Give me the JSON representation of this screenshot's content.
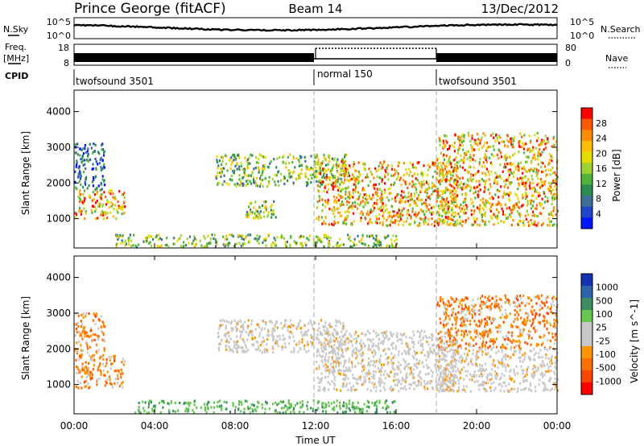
{
  "header": {
    "station": "Prince George (fitACF)",
    "beam": "Beam 14",
    "date": "13/Dec/2012"
  },
  "noise_panel": {
    "left_label": "N.Sky",
    "right_label": "N.Search",
    "left_ticks": [
      "10^5",
      "10^0"
    ],
    "right_ticks": [
      "10^5",
      "10^0"
    ]
  },
  "freq_panel": {
    "left_label_1": "Freq.",
    "left_label_2": "[MHz]",
    "left_ticks": [
      "18",
      "8"
    ],
    "right_label": "Nave",
    "right_ticks": [
      "80",
      "0"
    ]
  },
  "cpid_panel": {
    "label": "CPID",
    "segments": [
      {
        "name": "twofsound 3501",
        "start_h": 0,
        "end_h": 12
      },
      {
        "name": "normal 150",
        "start_h": 12,
        "end_h": 18
      },
      {
        "name": "twofsound 3501",
        "start_h": 18,
        "end_h": 24
      }
    ]
  },
  "time_axis": {
    "label": "Time UT",
    "ticks": [
      "00:00",
      "04:00",
      "08:00",
      "12:00",
      "16:00",
      "20:00",
      "00:00"
    ]
  },
  "chart_data": [
    {
      "type": "heatmap",
      "title": "",
      "ylabel": "Slant Range [km]",
      "xlabel": "",
      "x_range_hours": [
        0,
        24
      ],
      "ylim": [
        180,
        4600
      ],
      "y_ticks": [
        "4000",
        "3000",
        "2000",
        "1000"
      ],
      "colorbar": {
        "label": "Power [dB]",
        "ticks": [
          "28",
          "24",
          "20",
          "16",
          "12",
          "8",
          "4"
        ],
        "colors": [
          "#ff0000",
          "#ff5a00",
          "#ff8c00",
          "#ffbe00",
          "#e6dc00",
          "#a0d232",
          "#50b43c",
          "#2d8c50",
          "#3c6e96",
          "#1e46c8",
          "#0014ff"
        ]
      },
      "regions": [
        {
          "name": "dawn-near",
          "t": [
            0.0,
            2.5
          ],
          "r": [
            1000,
            1800
          ],
          "level": "high"
        },
        {
          "name": "dawn-far",
          "t": [
            0.0,
            1.5
          ],
          "r": [
            1800,
            3100
          ],
          "level": "low"
        },
        {
          "name": "ground-band",
          "t": [
            2.0,
            16.0
          ],
          "r": [
            200,
            550
          ],
          "level": "medium"
        },
        {
          "name": "mid-arc",
          "t": [
            7.0,
            13.5
          ],
          "r": [
            1900,
            2800
          ],
          "level": "medium"
        },
        {
          "name": "mid-patch",
          "t": [
            8.5,
            10.0
          ],
          "r": [
            1000,
            1500
          ],
          "level": "medium"
        },
        {
          "name": "dusk-descent",
          "t": [
            12.0,
            19.0
          ],
          "r": [
            800,
            2600
          ],
          "level": "high"
        },
        {
          "name": "evening-wide",
          "t": [
            18.0,
            24.0
          ],
          "r": [
            800,
            3400
          ],
          "level": "high"
        }
      ]
    },
    {
      "type": "heatmap",
      "title": "",
      "ylabel": "Slant Range [km]",
      "xlabel": "Time UT",
      "x_range_hours": [
        0,
        24
      ],
      "ylim": [
        180,
        4600
      ],
      "y_ticks": [
        "4000",
        "3000",
        "2000",
        "1000"
      ],
      "colorbar": {
        "label": "Velocity [m s^-1]",
        "ticks": [
          "1000",
          "500",
          "100",
          "25",
          "-25",
          "-100",
          "-500",
          "-1000"
        ],
        "colors": [
          "#1432b4",
          "#2d64aa",
          "#3c8c64",
          "#64c850",
          "#c8c8c8",
          "#c8c8c8",
          "#ff9600",
          "#ff6e00",
          "#ff4600",
          "#ff0000"
        ]
      },
      "regions": [
        {
          "name": "dawn-near",
          "t": [
            0.0,
            2.5
          ],
          "r": [
            900,
            1800
          ],
          "level": "away"
        },
        {
          "name": "dawn-far",
          "t": [
            0.0,
            1.5
          ],
          "r": [
            1800,
            3000
          ],
          "level": "away"
        },
        {
          "name": "ground-band",
          "t": [
            3.0,
            16.0
          ],
          "r": [
            200,
            550
          ],
          "level": "toward"
        },
        {
          "name": "mid-arc",
          "t": [
            7.0,
            13.5
          ],
          "r": [
            1900,
            2800
          ],
          "level": "ground"
        },
        {
          "name": "dusk-descent",
          "t": [
            12.0,
            19.0
          ],
          "r": [
            800,
            2500
          ],
          "level": "ground"
        },
        {
          "name": "evening-far",
          "t": [
            18.0,
            24.0
          ],
          "r": [
            2000,
            3500
          ],
          "level": "away"
        },
        {
          "name": "evening-near",
          "t": [
            18.0,
            24.0
          ],
          "r": [
            800,
            2000
          ],
          "level": "ground"
        }
      ]
    }
  ]
}
